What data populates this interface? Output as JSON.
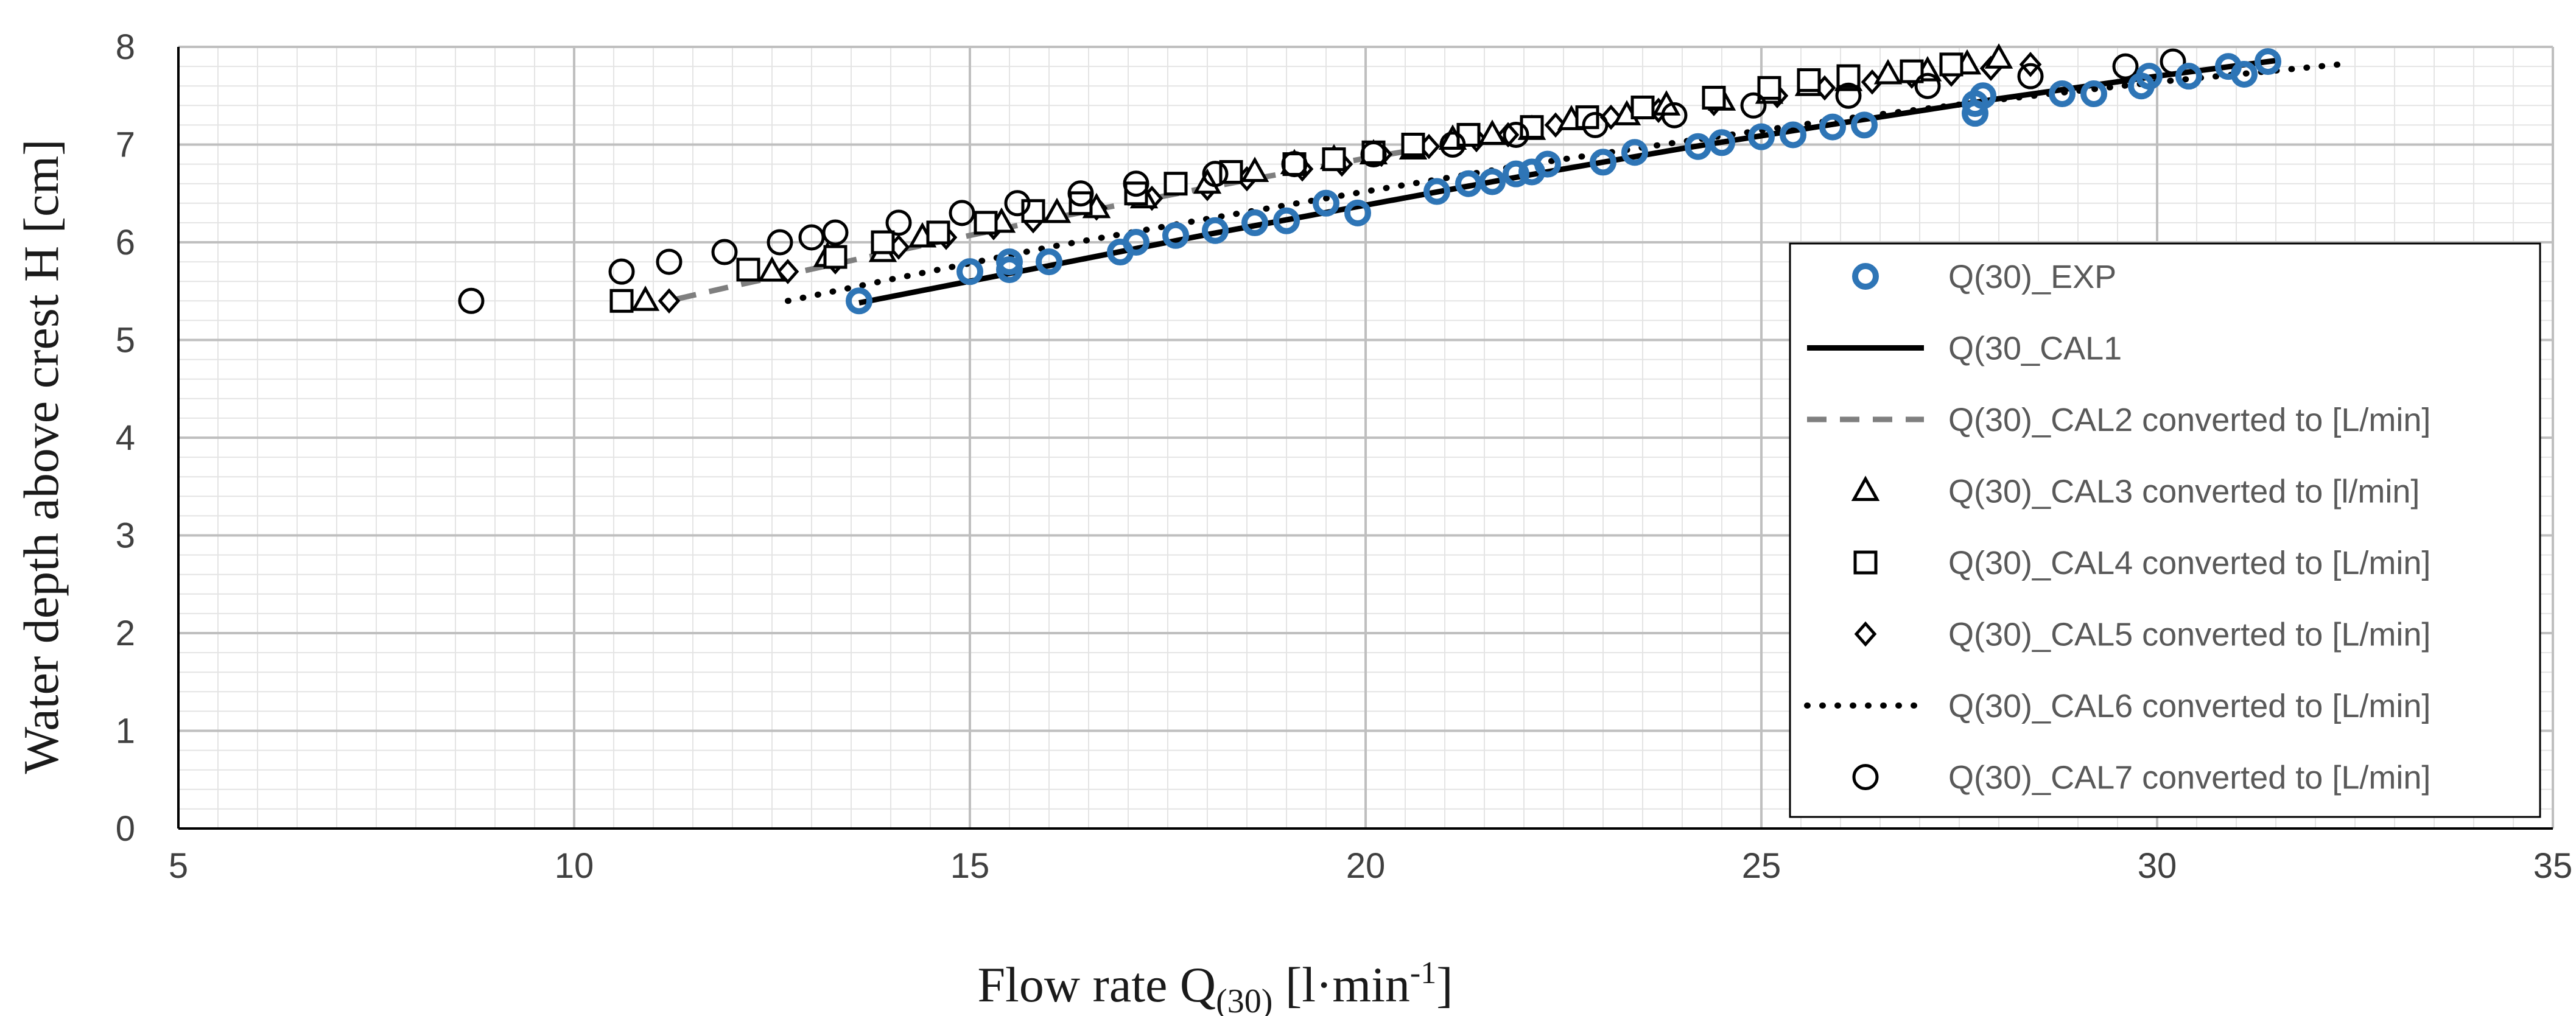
{
  "chart_data": {
    "type": "scatter",
    "title": "",
    "xlabel": {
      "main": "Flow rate Q",
      "sub": "(30)",
      "unit_before": " [l·min",
      "sup": "-1",
      "unit_after": "]"
    },
    "ylabel": "Water depth  above crest H [cm]",
    "xlim": [
      5,
      35
    ],
    "ylim": [
      0,
      8
    ],
    "x_ticks": [
      "5",
      "10",
      "15",
      "20",
      "25",
      "30",
      "35"
    ],
    "y_ticks": [
      "0",
      "1",
      "2",
      "3",
      "4",
      "5",
      "6",
      "7",
      "8"
    ],
    "grid": {
      "major": true,
      "minor": true
    },
    "legend_position": "right",
    "colors": {
      "exp": "#2e75b6",
      "black": "#000000",
      "gray": "#7f7f7f",
      "major_grid": "#bfbfbf",
      "minor_grid": "#e4e4e4"
    },
    "series": [
      {
        "name": "Q(30)_EXP",
        "style": "circle-blue",
        "x": [
          13.6,
          15,
          15.5,
          15.5,
          16,
          16.9,
          17.1,
          17.6,
          18.1,
          18.6,
          19,
          19.5,
          19.9,
          20.9,
          21.3,
          21.6,
          21.9,
          22.1,
          22.3,
          23,
          23.4,
          24.2,
          24.5,
          25,
          25.4,
          25.9,
          26.3,
          27.7,
          27.7,
          27.8,
          28.8,
          29.2,
          29.8,
          29.9,
          30.4,
          30.9,
          31.1,
          31.4
        ],
        "y": [
          5.4,
          5.7,
          5.72,
          5.8,
          5.8,
          5.9,
          6,
          6.07,
          6.12,
          6.2,
          6.22,
          6.4,
          6.3,
          6.52,
          6.6,
          6.62,
          6.7,
          6.72,
          6.8,
          6.82,
          6.92,
          6.98,
          7.02,
          7.08,
          7.1,
          7.18,
          7.2,
          7.32,
          7.42,
          7.5,
          7.52,
          7.52,
          7.6,
          7.7,
          7.7,
          7.8,
          7.72,
          7.85
        ]
      },
      {
        "name": "Q(30_CAL1",
        "style": "line-solid",
        "x": [
          13.6,
          16,
          18,
          20,
          22,
          24,
          26,
          28,
          30,
          31.5
        ],
        "y": [
          5.38,
          5.76,
          6.08,
          6.38,
          6.68,
          6.96,
          7.22,
          7.47,
          7.7,
          7.86
        ]
      },
      {
        "name": "Q(30)_CAL2 converted to [L/min]",
        "style": "line-dashed-gray",
        "x": [
          11.3,
          12,
          14,
          16,
          18,
          20,
          21
        ],
        "y": [
          5.42,
          5.55,
          5.9,
          6.24,
          6.56,
          6.86,
          7.0
        ]
      },
      {
        "name": "Q(30)_CAL3 converted to [l/min]",
        "style": "triangle",
        "x": [
          10.9,
          12.5,
          13.2,
          13.9,
          14.4,
          15.4,
          16.1,
          16.6,
          17.2,
          18,
          18.6,
          19.1,
          19.6,
          20.1,
          20.6,
          21.1,
          21.6,
          22.1,
          22.6,
          23.3,
          23.8,
          24.5,
          25.1,
          25.6,
          26.1,
          26.6,
          27.1,
          27.6,
          28
        ],
        "y": [
          5.4,
          5.7,
          5.85,
          5.9,
          6.05,
          6.2,
          6.3,
          6.35,
          6.45,
          6.6,
          6.72,
          6.8,
          6.85,
          6.9,
          6.95,
          7.05,
          7.1,
          7.15,
          7.25,
          7.3,
          7.4,
          7.45,
          7.52,
          7.6,
          7.65,
          7.72,
          7.75,
          7.82,
          7.88
        ]
      },
      {
        "name": "Q(30)_CAL4 converted to [L/min]",
        "style": "square",
        "x": [
          10.6,
          12.2,
          13.3,
          13.9,
          14.6,
          15.2,
          15.8,
          16.4,
          17.1,
          17.6,
          18.3,
          19.1,
          19.6,
          20.1,
          20.6,
          21.3,
          22.1,
          22.8,
          23.5,
          24.4,
          25.1,
          25.6,
          26.1,
          26.9,
          27.4
        ],
        "y": [
          5.4,
          5.72,
          5.85,
          6,
          6.1,
          6.2,
          6.32,
          6.4,
          6.5,
          6.6,
          6.72,
          6.8,
          6.85,
          6.92,
          7,
          7.1,
          7.18,
          7.28,
          7.38,
          7.48,
          7.58,
          7.66,
          7.7,
          7.75,
          7.82
        ]
      },
      {
        "name": "Q(30)_CAL5 converted to [L/min]",
        "style": "diamond",
        "x": [
          11.2,
          12.7,
          13.3,
          14.1,
          14.7,
          15.3,
          15.8,
          16.6,
          17.3,
          18,
          18.5,
          19.2,
          19.7,
          20.2,
          20.8,
          21.4,
          21.8,
          22.4,
          23.1,
          23.7,
          24.4,
          25.2,
          25.8,
          26.4,
          26.9,
          27.4,
          27.9,
          28.4
        ],
        "y": [
          5.4,
          5.7,
          5.8,
          5.95,
          6.05,
          6.15,
          6.22,
          6.35,
          6.45,
          6.55,
          6.65,
          6.75,
          6.8,
          6.9,
          6.98,
          7.05,
          7.1,
          7.2,
          7.28,
          7.35,
          7.42,
          7.5,
          7.58,
          7.64,
          7.7,
          7.72,
          7.78,
          7.82
        ]
      },
      {
        "name": "Q(30)_CAL6 converted to [L/min]",
        "style": "line-dotted",
        "x": [
          12.7,
          14,
          16,
          18,
          20,
          22,
          24,
          26,
          28,
          30,
          32.3
        ],
        "y": [
          5.4,
          5.62,
          5.95,
          6.24,
          6.52,
          6.79,
          7.03,
          7.26,
          7.46,
          7.64,
          7.82
        ]
      },
      {
        "name": "Q(30)_CAL7 converted to [L/min]",
        "style": "circle-black",
        "x": [
          8.7,
          10.6,
          11.2,
          11.9,
          12.6,
          13,
          13.3,
          14.1,
          14.9,
          15.6,
          16.4,
          17.1,
          18.1,
          19.1,
          20.1,
          21.1,
          21.9,
          22.9,
          23.9,
          24.9,
          26.1,
          27.1,
          28.4,
          29.6,
          30.2
        ],
        "y": [
          5.4,
          5.7,
          5.8,
          5.9,
          6,
          6.05,
          6.1,
          6.2,
          6.3,
          6.4,
          6.5,
          6.6,
          6.7,
          6.8,
          6.9,
          7.0,
          7.1,
          7.2,
          7.3,
          7.4,
          7.5,
          7.6,
          7.7,
          7.8,
          7.85
        ]
      }
    ]
  }
}
